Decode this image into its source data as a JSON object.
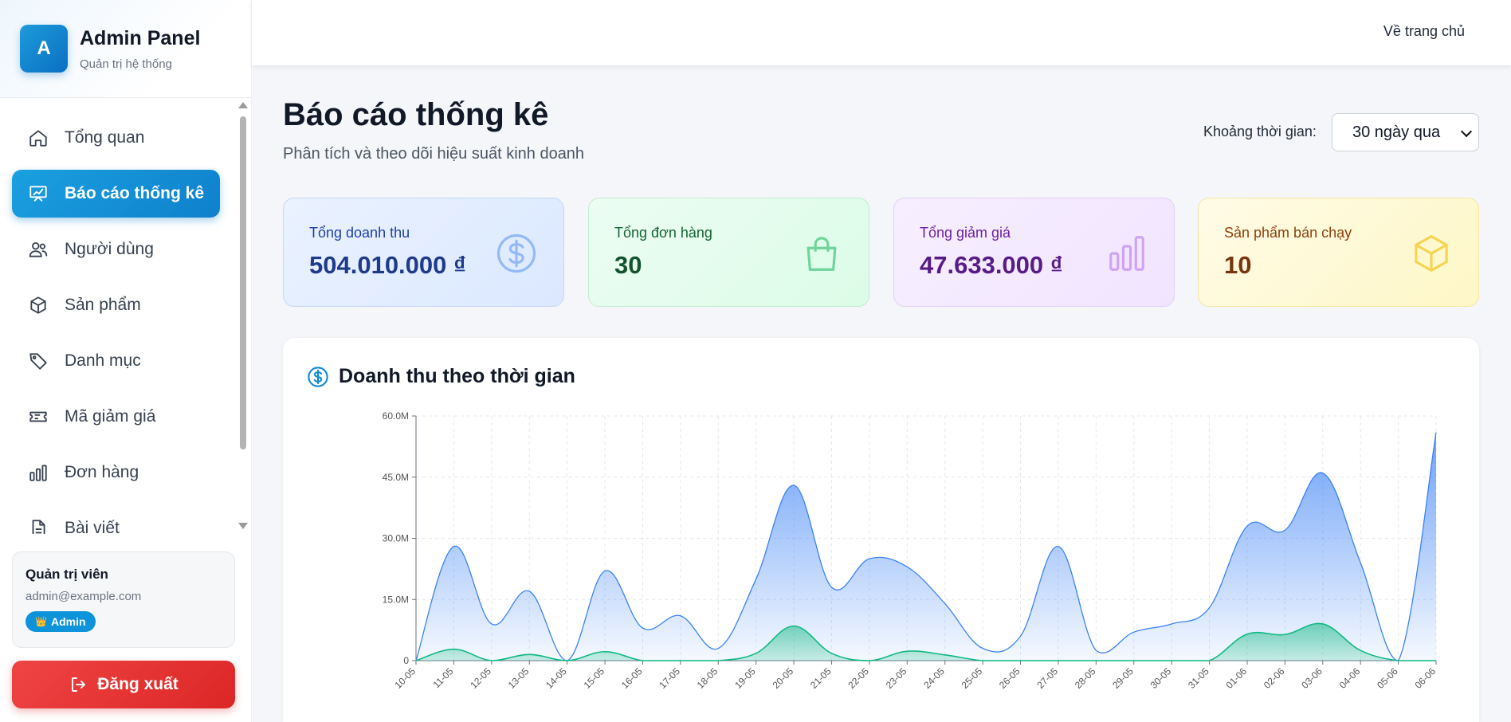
{
  "sidebar": {
    "brand_letter": "A",
    "brand_title": "Admin Panel",
    "brand_subtitle": "Quản trị hệ thống",
    "items": [
      {
        "label": "Tổng quan",
        "icon": "home-icon"
      },
      {
        "label": "Báo cáo thống kê",
        "icon": "presentation-chart-icon",
        "active": true
      },
      {
        "label": "Người dùng",
        "icon": "users-icon"
      },
      {
        "label": "Sản phẩm",
        "icon": "box-icon"
      },
      {
        "label": "Danh mục",
        "icon": "tag-icon"
      },
      {
        "label": "Mã giảm giá",
        "icon": "ticket-icon"
      },
      {
        "label": "Đơn hàng",
        "icon": "bar-chart-icon"
      },
      {
        "label": "Bài viết",
        "icon": "document-icon"
      }
    ],
    "user": {
      "name": "Quản trị viên",
      "email": "admin@example.com",
      "badge": "Admin"
    },
    "logout_label": "Đăng xuất"
  },
  "topbar": {
    "home_link": "Về trang chủ"
  },
  "header": {
    "title": "Báo cáo thống kê",
    "subtitle": "Phân tích và theo dõi hiệu suất kinh doanh",
    "range_label": "Khoảng thời gian:",
    "range_value": "30 ngày qua"
  },
  "stats": [
    {
      "label": "Tổng doanh thu",
      "value": "504.010.000 ₫",
      "icon": "dollar-circle-icon"
    },
    {
      "label": "Tổng đơn hàng",
      "value": "30",
      "icon": "shopping-bag-icon"
    },
    {
      "label": "Tổng giảm giá",
      "value": "47.633.000 ₫",
      "icon": "bar-chart-icon"
    },
    {
      "label": "Sản phẩm bán chạy",
      "value": "10",
      "icon": "cube-icon"
    }
  ],
  "colors": {
    "revenue": "#3b82f6",
    "discount": "#10b981"
  },
  "chart_data": {
    "type": "area",
    "title": "Doanh thu theo thời gian",
    "categories": [
      "10-05",
      "11-05",
      "12-05",
      "13-05",
      "14-05",
      "15-05",
      "16-05",
      "17-05",
      "18-05",
      "19-05",
      "20-05",
      "21-05",
      "22-05",
      "23-05",
      "24-05",
      "25-05",
      "26-05",
      "27-05",
      "28-05",
      "29-05",
      "30-05",
      "31-05",
      "01-06",
      "02-06",
      "03-06",
      "04-06",
      "05-06",
      "06-06"
    ],
    "series": [
      {
        "values": [
          0,
          28000000,
          9000000,
          17000000,
          0,
          22000000,
          8000000,
          11000000,
          3000000,
          20000000,
          43000000,
          18000000,
          25000000,
          23000000,
          14000000,
          3000000,
          6000000,
          28000000,
          2500000,
          7000000,
          9000000,
          13000000,
          33000000,
          32000000,
          46000000,
          24000000,
          0,
          56000000
        ]
      },
      {
        "values": [
          0,
          2800000,
          0,
          1500000,
          0,
          2200000,
          0,
          0,
          0,
          1800000,
          8500000,
          1800000,
          0,
          2300000,
          1400000,
          0,
          0,
          0,
          0,
          0,
          0,
          0,
          6500000,
          6400000,
          9000000,
          2500000,
          0,
          0
        ]
      }
    ],
    "y_ticks": [
      "0",
      "15.0M",
      "30.0M",
      "45.0M",
      "60.0M"
    ],
    "ylim": [
      0,
      60000000
    ],
    "grid": true
  }
}
